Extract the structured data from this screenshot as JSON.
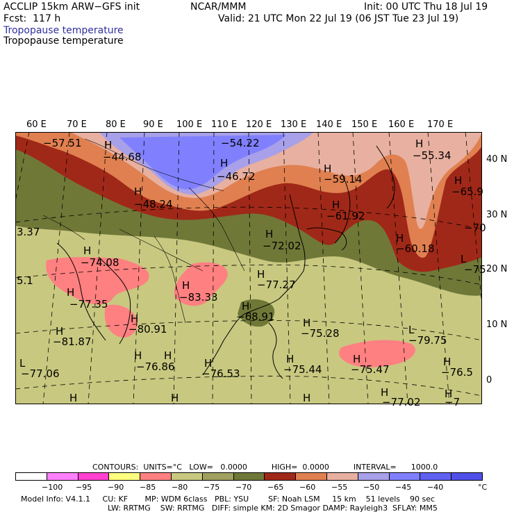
{
  "header": {
    "model": "ACCLIP 15km ARW−GFS init",
    "org": "NCAR/MMM",
    "init": "Init: 00 UTC Thu 18 Jul 19",
    "fcst": "Fcst:  117 h",
    "valid": "Valid: 21 UTC Mon 22 Jul 19 (06 JST Tue 23 Jul 19)",
    "field1": "Tropopause temperature",
    "field2": "Tropopause temperature"
  },
  "axes": {
    "lon_labels": [
      "60 E",
      "70 E",
      "80 E",
      "90 E",
      "100 E",
      "110 E",
      "120 E",
      "130 E",
      "140 E",
      "150 E",
      "160 E",
      "170 E"
    ],
    "lat_labels": [
      "40 N",
      "30 N",
      "20 N",
      "10 N",
      "0"
    ]
  },
  "map_labels": [
    {
      "text": "−57.51"
    },
    {
      "text": "−44.68"
    },
    {
      "text": "−54.22"
    },
    {
      "text": "−46.72"
    },
    {
      "text": "−55.34"
    },
    {
      "text": "−59.14"
    },
    {
      "text": "−48.24"
    },
    {
      "text": "−65.9"
    },
    {
      "text": "−61.92"
    },
    {
      "text": "−70"
    },
    {
      "text": "−72.02"
    },
    {
      "text": "−60.18"
    },
    {
      "text": "3.37"
    },
    {
      "text": "−74.08"
    },
    {
      "text": "−75"
    },
    {
      "text": "−77.27"
    },
    {
      "text": "5.1"
    },
    {
      "text": "−77.35"
    },
    {
      "text": "−83.33"
    },
    {
      "text": "−68.91"
    },
    {
      "text": "−80.91"
    },
    {
      "text": "−75.28"
    },
    {
      "text": "−81.87"
    },
    {
      "text": "−79.75"
    },
    {
      "text": "−76.86"
    },
    {
      "text": "−75.44"
    },
    {
      "text": "−75.47"
    },
    {
      "text": "−76.5"
    },
    {
      "text": "−77.06"
    },
    {
      "text": "−76.53"
    },
    {
      "text": "−77.02"
    },
    {
      "text": "−7"
    }
  ],
  "colorbar": {
    "contours": "CONTOURS:  UNITS=°C   LOW=   0.0000          HIGH=  0.0000          INTERVAL=      1000.0",
    "bins": [
      {
        "color": "#ffffff"
      },
      {
        "color": "#ff80ff"
      },
      {
        "color": "#ff40d0"
      },
      {
        "color": "#ffff80"
      },
      {
        "color": "#ff8080"
      },
      {
        "color": "#c8c880"
      },
      {
        "color": "#a0a060"
      },
      {
        "color": "#707838"
      },
      {
        "color": "#a02818"
      },
      {
        "color": "#e08050"
      },
      {
        "color": "#e8b0a0"
      },
      {
        "color": "#a8a0e8"
      },
      {
        "color": "#8080ff"
      },
      {
        "color": "#6060f0"
      },
      {
        "color": "#5050e8"
      }
    ],
    "ticks": [
      "−100",
      "−95",
      "−90",
      "−85",
      "−80",
      "−75",
      "−70",
      "−65",
      "−60",
      "−55",
      "−50",
      "−45",
      "−40",
      "°C"
    ]
  },
  "footer": {
    "line1": "Model Info: V4.1.1     CU: KF       MP: WDM 6class   PBL: YSU        SF: Noah LSM     15 km    51 levels    90 sec",
    "line2": "LW: RRTMG    SW: RRTMG   DIFF: simple KM: 2D Smagor DAMP: Rayleigh3  SFLAY: MM5"
  }
}
